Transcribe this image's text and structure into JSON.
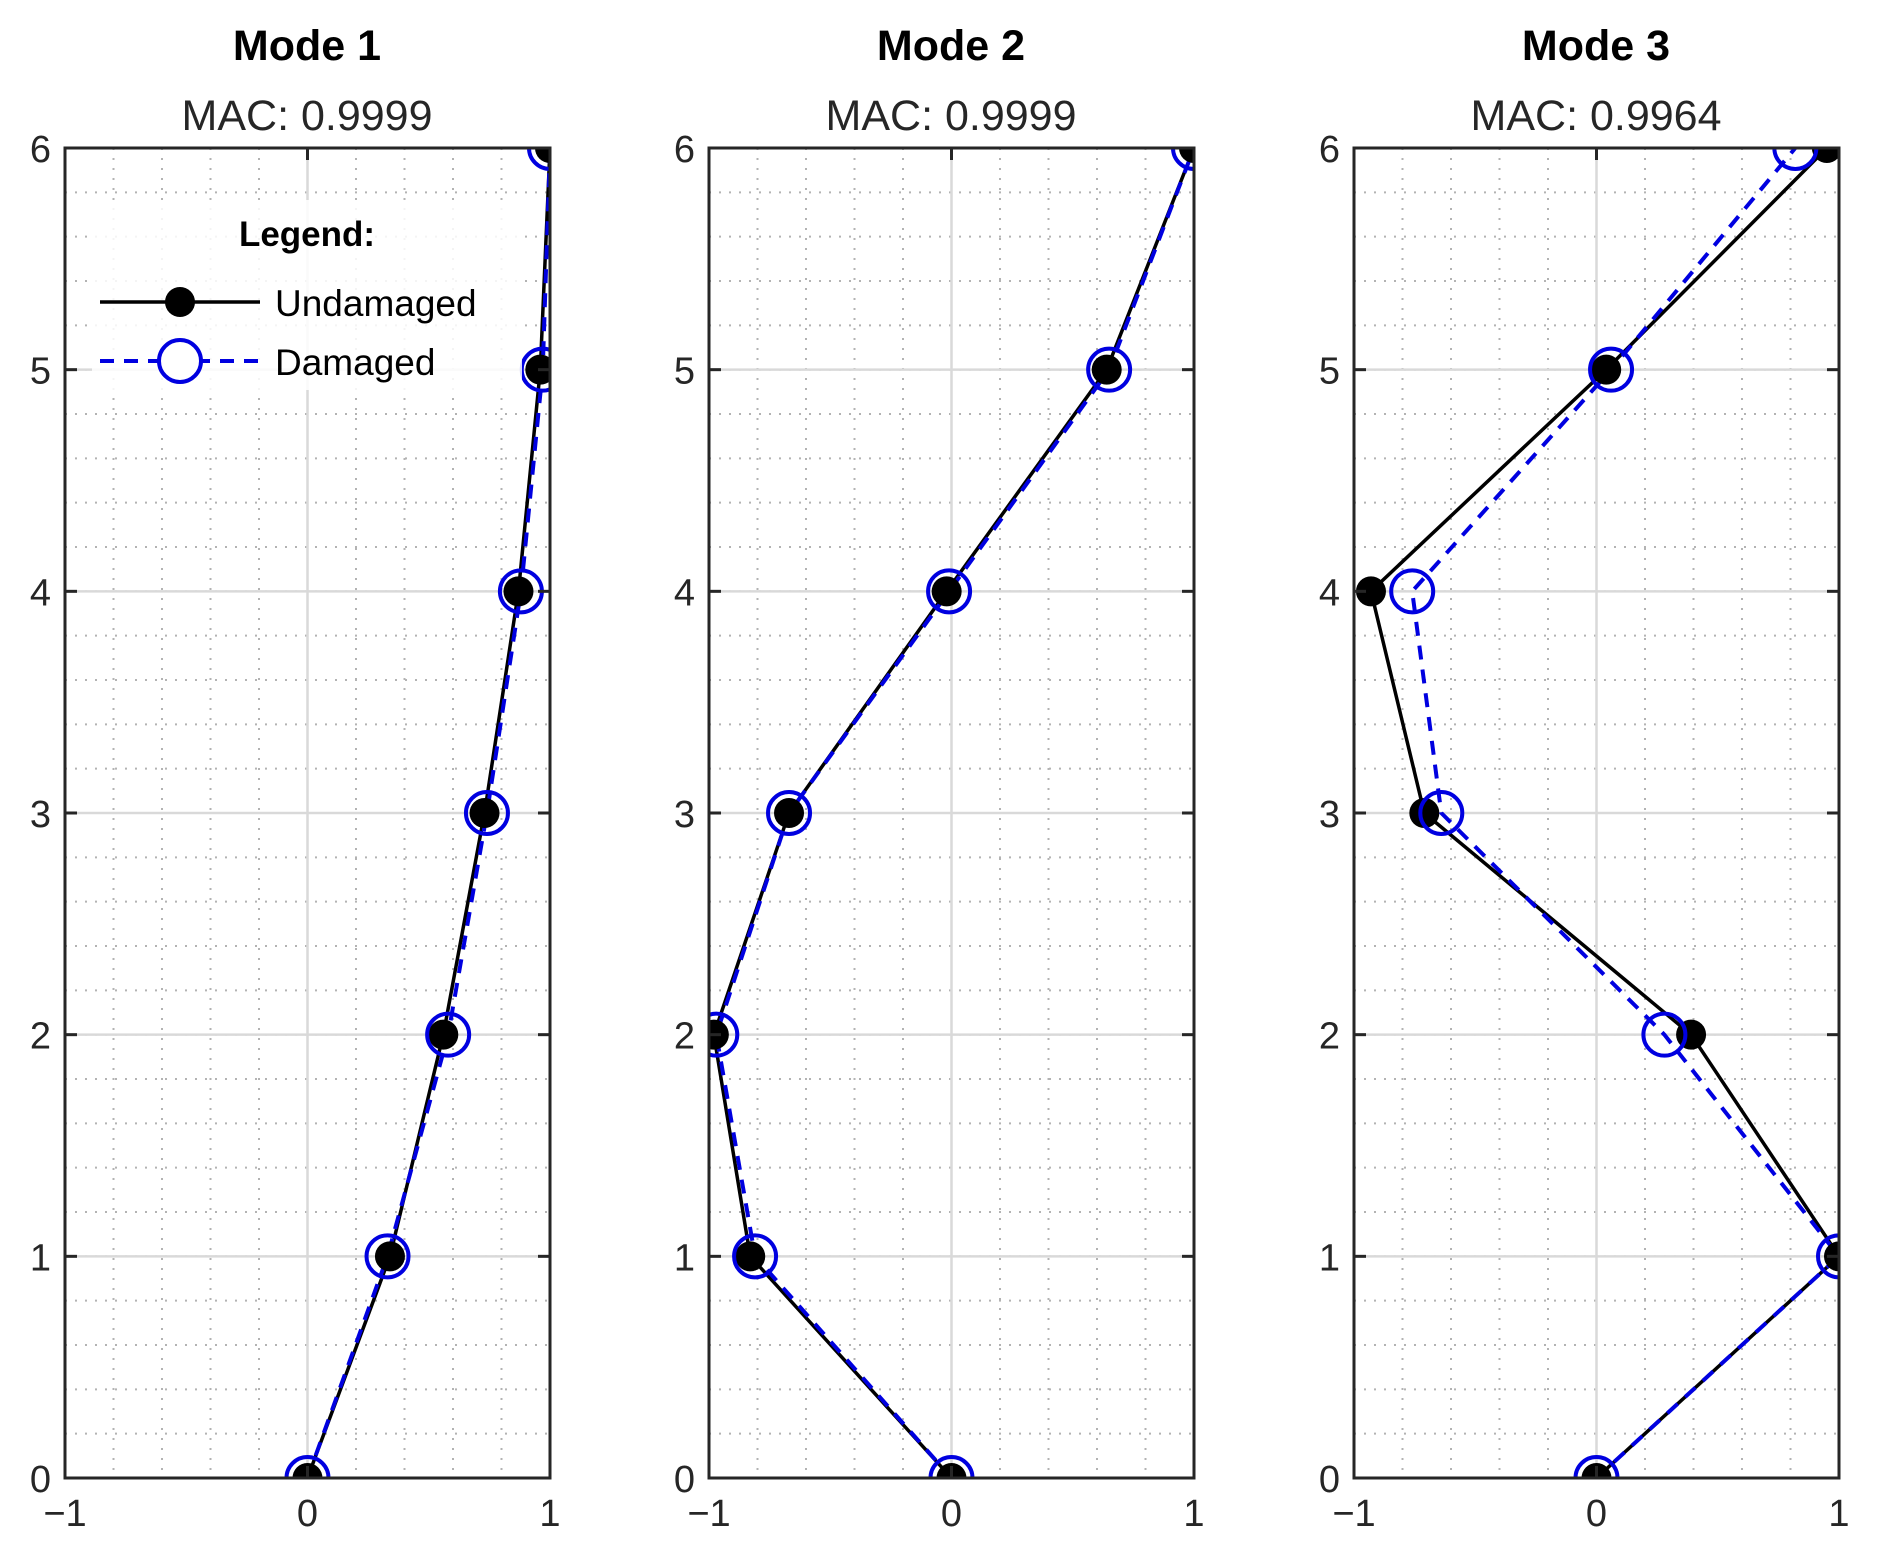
{
  "colors": {
    "undamaged": "#000000",
    "damaged": "#0000e0",
    "axis": "#262626",
    "grid_major": "#d9d9d9",
    "grid_minor": "#b3b3b3"
  },
  "legend": {
    "title": "Legend:",
    "entries": [
      "Undamaged",
      "Damaged"
    ],
    "placement": "top-left of first panel"
  },
  "chart_data": [
    {
      "type": "line",
      "title": "Mode 1",
      "subtitle": "MAC: 0.9999",
      "xlim": [
        -1,
        1
      ],
      "ylim": [
        0,
        6
      ],
      "xticks": [
        "−1",
        "0",
        "1"
      ],
      "yticks": [
        "0",
        "1",
        "2",
        "3",
        "4",
        "5",
        "6"
      ],
      "grid": "major solid, minor dotted",
      "series": [
        {
          "name": "Undamaged",
          "style": "solid, filled circles",
          "x": [
            0,
            0.34,
            0.56,
            0.73,
            0.87,
            0.96,
            1.0
          ],
          "y": [
            0,
            1,
            2,
            3,
            4,
            5,
            6
          ]
        },
        {
          "name": "Damaged",
          "style": "dashed, open circles",
          "x": [
            0,
            0.33,
            0.58,
            0.74,
            0.88,
            0.97,
            1.0
          ],
          "y": [
            0,
            1,
            2,
            3,
            4,
            5,
            6
          ]
        }
      ]
    },
    {
      "type": "line",
      "title": "Mode 2",
      "subtitle": "MAC: 0.9999",
      "xlim": [
        -1,
        1
      ],
      "ylim": [
        0,
        6
      ],
      "xticks": [
        "−1",
        "0",
        "1"
      ],
      "yticks": [
        "0",
        "1",
        "2",
        "3",
        "4",
        "5",
        "6"
      ],
      "grid": "major solid, minor dotted",
      "series": [
        {
          "name": "Undamaged",
          "style": "solid, filled circles",
          "x": [
            0,
            -0.83,
            -0.98,
            -0.67,
            -0.02,
            0.64,
            1.0
          ],
          "y": [
            0,
            1,
            2,
            3,
            4,
            5,
            6
          ]
        },
        {
          "name": "Damaged",
          "style": "dashed, open circles",
          "x": [
            0,
            -0.81,
            -0.97,
            -0.67,
            -0.01,
            0.65,
            1.0
          ],
          "y": [
            0,
            1,
            2,
            3,
            4,
            5,
            6
          ]
        }
      ]
    },
    {
      "type": "line",
      "title": "Mode 3",
      "subtitle": "MAC: 0.9964",
      "xlim": [
        -1,
        1
      ],
      "ylim": [
        0,
        6
      ],
      "xticks": [
        "−1",
        "0",
        "1"
      ],
      "yticks": [
        "0",
        "1",
        "2",
        "3",
        "4",
        "5",
        "6"
      ],
      "grid": "major solid, minor dotted",
      "series": [
        {
          "name": "Undamaged",
          "style": "solid, filled circles",
          "x": [
            0,
            1.0,
            0.39,
            -0.71,
            -0.93,
            0.04,
            0.95
          ],
          "y": [
            0,
            1,
            2,
            3,
            4,
            5,
            6
          ]
        },
        {
          "name": "Damaged",
          "style": "dashed, open circles",
          "x": [
            0,
            1.0,
            0.28,
            -0.64,
            -0.76,
            0.06,
            0.82
          ],
          "y": [
            0,
            1,
            2,
            3,
            4,
            5,
            6
          ]
        }
      ]
    }
  ]
}
